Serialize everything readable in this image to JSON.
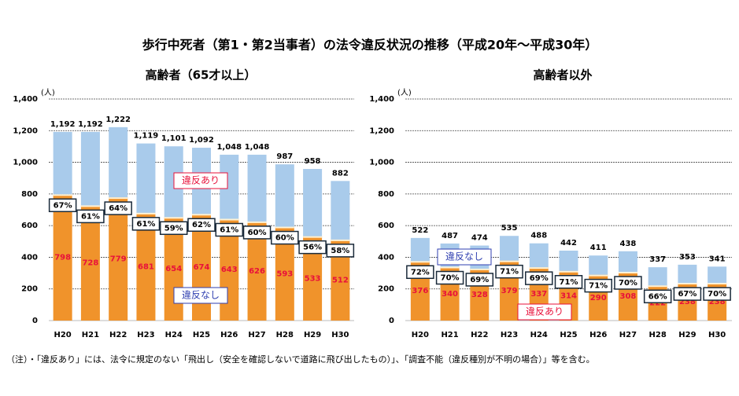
{
  "title": "歩行中死者（第1・第2当事者）の法令違反状況の推移（平成20年～平成30年）",
  "note": "（注）・「違反あり」には、法令に規定のない「飛出し（安全を確認しないで道路に飛び出したもの）」、「調査不能（違反種別が不明の場合）」等を含む。",
  "chart_data": [
    {
      "type": "stacked-bar",
      "title": "高齢者（65才以上）",
      "y_unit": "(人)",
      "categories": [
        "H20",
        "H21",
        "H22",
        "H23",
        "H24",
        "H25",
        "H26",
        "H27",
        "H28",
        "H29",
        "H30"
      ],
      "series": [
        {
          "name": "違反あり",
          "color": "#f0932b",
          "label_color": "#e8103a",
          "values": [
            798,
            728,
            779,
            681,
            654,
            674,
            643,
            626,
            593,
            533,
            512
          ]
        },
        {
          "name": "違反なし",
          "color": "#a9cbeb",
          "label_color": "#2f3fb0",
          "values": [
            394,
            464,
            443,
            438,
            447,
            418,
            405,
            422,
            394,
            425,
            370
          ]
        }
      ],
      "totals": [
        1192,
        1192,
        1222,
        1119,
        1101,
        1092,
        1048,
        1048,
        987,
        958,
        882
      ],
      "total_labels": [
        "1,192",
        "1,192",
        "1,222",
        "1,119",
        "1,101",
        "1,092",
        "1,048",
        "1,048",
        "987",
        "958",
        "882"
      ],
      "ratio_labels": [
        "67%",
        "61%",
        "64%",
        "61%",
        "59%",
        "62%",
        "61%",
        "60%",
        "60%",
        "56%",
        "58%"
      ],
      "ylim": [
        0,
        1400
      ],
      "yticks": [
        0,
        200,
        400,
        600,
        800,
        {
          "value": 1000,
          "label": "1,000"
        },
        {
          "value": 1200,
          "label": "1,200"
        },
        {
          "value": 1400,
          "label": "1,400"
        }
      ],
      "grid": true
    },
    {
      "type": "stacked-bar",
      "title": "高齢者以外",
      "y_unit": "(人)",
      "categories": [
        "H20",
        "H21",
        "H22",
        "H23",
        "H24",
        "H25",
        "H26",
        "H27",
        "H28",
        "H29",
        "H30"
      ],
      "series": [
        {
          "name": "違反あり",
          "color": "#f0932b",
          "label_color": "#e8103a",
          "values": [
            376,
            340,
            328,
            379,
            337,
            314,
            290,
            308,
            222,
            238,
            238
          ]
        },
        {
          "name": "違反なし",
          "color": "#a9cbeb",
          "label_color": "#2f3fb0",
          "values": [
            146,
            147,
            146,
            156,
            151,
            128,
            121,
            130,
            115,
            115,
            103
          ]
        }
      ],
      "totals": [
        522,
        487,
        474,
        535,
        488,
        442,
        411,
        438,
        337,
        353,
        341
      ],
      "ratio_labels": [
        "72%",
        "70%",
        "69%",
        "71%",
        "69%",
        "71%",
        "71%",
        "70%",
        "66%",
        "67%",
        "70%"
      ],
      "ylim": [
        0,
        1400
      ],
      "yticks": [
        0,
        200,
        400,
        600,
        800,
        {
          "value": 1000,
          "label": "1,000"
        },
        {
          "value": 1200,
          "label": "1,200"
        },
        {
          "value": 1400,
          "label": "1,400"
        }
      ],
      "grid": true
    }
  ]
}
